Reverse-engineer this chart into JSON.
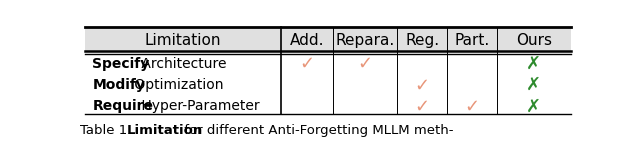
{
  "col_headers": [
    "Limitation",
    "Add.",
    "Repara.",
    "Reg.",
    "Part.",
    "Ours"
  ],
  "rows": [
    {
      "label_bold": "Specify",
      "label_rest": " Architecture",
      "marks": [
        "✓",
        "✓",
        "",
        "",
        "✗"
      ]
    },
    {
      "label_bold": "Modify",
      "label_rest": " Optimization",
      "marks": [
        "",
        "",
        "✓",
        "",
        "✗"
      ]
    },
    {
      "label_bold": "Require",
      "label_rest": " Hyper-Parameter",
      "marks": [
        "",
        "",
        "✓",
        "✓",
        "✗"
      ]
    }
  ],
  "check_color": "#E8967A",
  "cross_color": "#2E8B2E",
  "header_bg": "#E0E0E0",
  "caption_pre": "able 1.  ",
  "caption_bold": "Limitation",
  "caption_post": " for different Anti-Forgetting MLLM meth-",
  "fig_width": 6.4,
  "fig_height": 1.57,
  "dpi": 100
}
